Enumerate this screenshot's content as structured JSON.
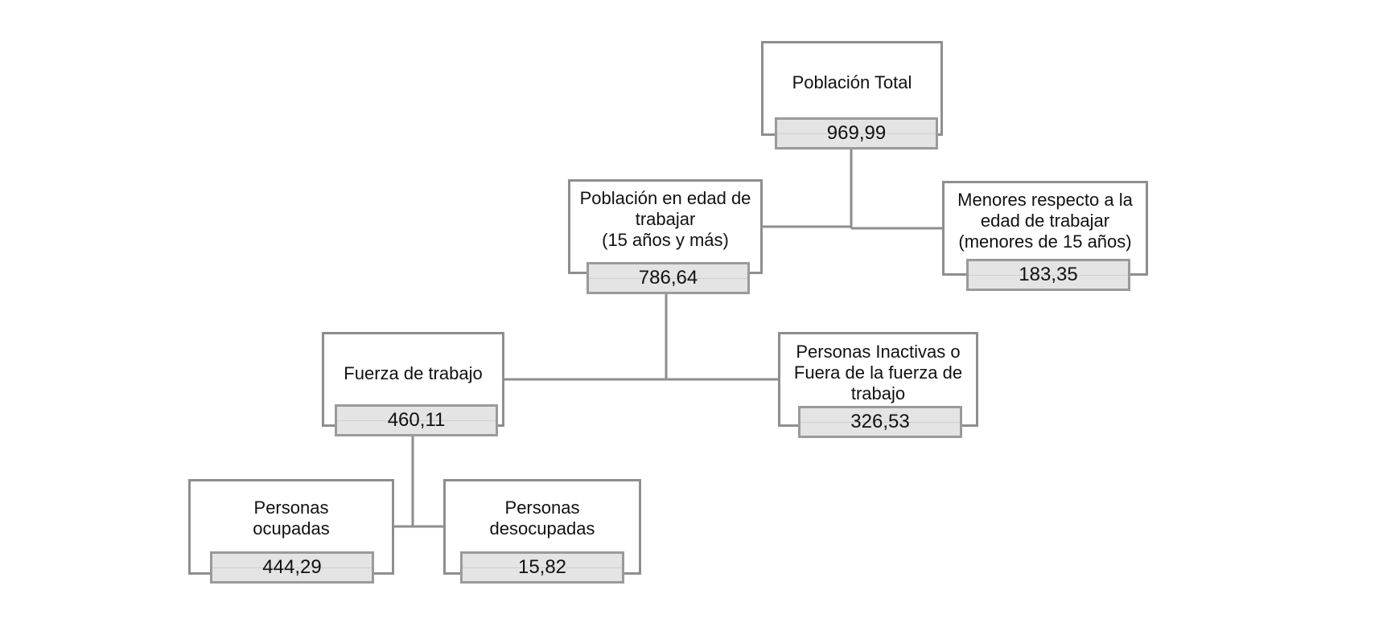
{
  "nodes": {
    "poblacion_total": {
      "label_lines": [
        "Población Total"
      ],
      "value": "969,99"
    },
    "poblacion_edad_trabajar": {
      "label_lines": [
        "Población en edad de",
        "trabajar",
        "(15 años y más)"
      ],
      "value": "786,64"
    },
    "menores_edad_trabajar": {
      "label_lines": [
        "Menores respecto a la",
        "edad de trabajar",
        "(menores de 15 años)"
      ],
      "value": "183,35"
    },
    "fuerza_de_trabajo": {
      "label_lines": [
        "Fuerza de trabajo"
      ],
      "value": "460,11"
    },
    "personas_inactivas": {
      "label_lines": [
        "Personas Inactivas o",
        "Fuera de la fuerza de",
        "trabajo"
      ],
      "value": "326,53"
    },
    "personas_ocupadas": {
      "label_lines": [
        "Personas",
        "ocupadas"
      ],
      "value": "444,29"
    },
    "personas_desocupadas": {
      "label_lines": [
        "Personas",
        "desocupadas"
      ],
      "value": "15,82"
    }
  },
  "colors": {
    "border": "#8e8e8e",
    "value_fill": "#e4e4e4",
    "connector": "#8e8e8e"
  }
}
